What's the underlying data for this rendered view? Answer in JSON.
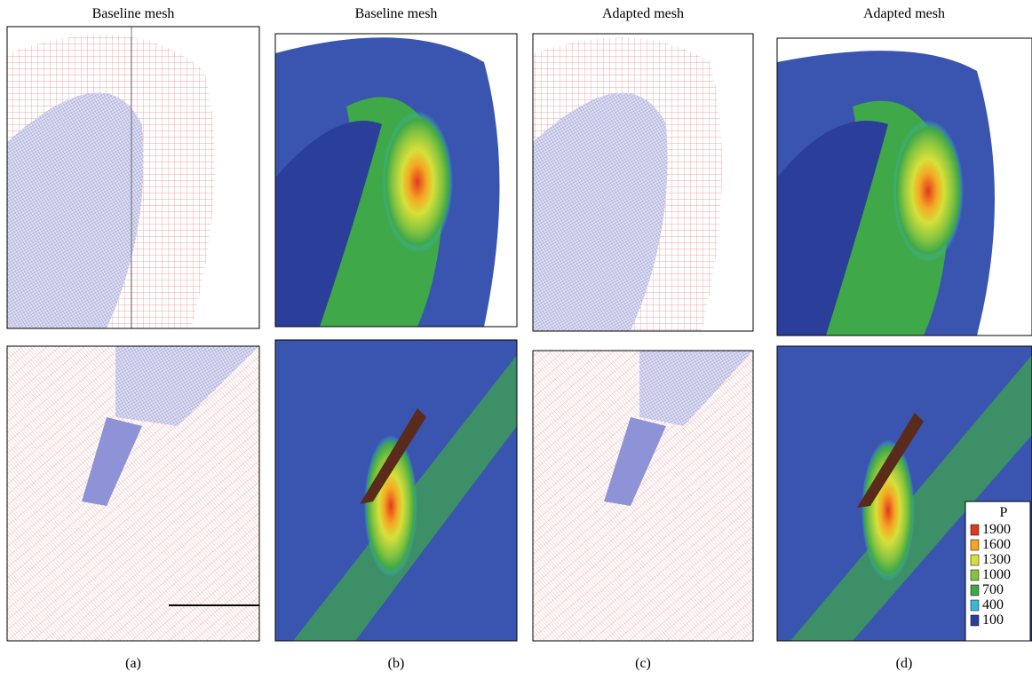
{
  "panels": [
    {
      "title": "Baseline mesh",
      "caption": "(a)"
    },
    {
      "title": "Baseline mesh",
      "caption": "(b)"
    },
    {
      "title": "Adapted mesh",
      "caption": "(c)"
    },
    {
      "title": "Adapted mesh",
      "caption": "(d)"
    }
  ],
  "legend": {
    "title": "P",
    "items": [
      {
        "label": 1900,
        "color": "#e03a1e"
      },
      {
        "label": 1600,
        "color": "#f5a623"
      },
      {
        "label": 1300,
        "color": "#d6e03a"
      },
      {
        "label": 1000,
        "color": "#86c440"
      },
      {
        "label": 700,
        "color": "#3fa848"
      },
      {
        "label": 400,
        "color": "#39b6dc"
      },
      {
        "label": 100,
        "color": "#2b3f9a"
      }
    ]
  }
}
